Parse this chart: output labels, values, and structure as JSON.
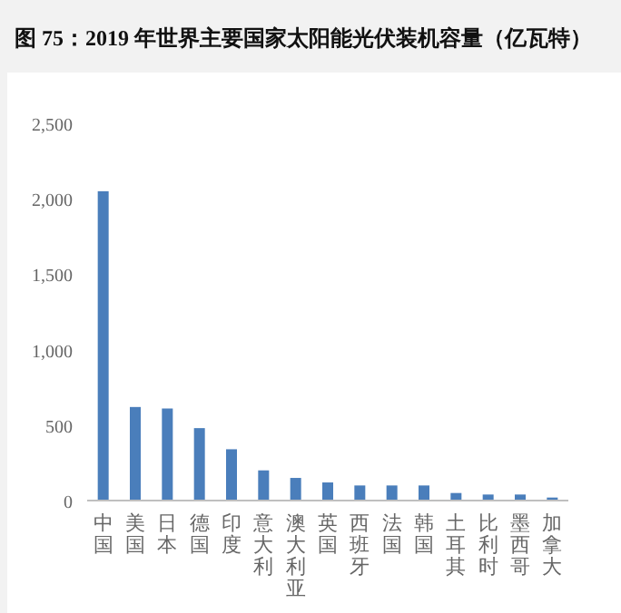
{
  "chart_data": {
    "type": "bar",
    "title": "图 75：2019 年世界主要国家太阳能光伏装机容量（亿瓦特）",
    "categories": [
      "中国",
      "美国",
      "日本",
      "德国",
      "印度",
      "意大利",
      "澳大利亚",
      "英国",
      "西班牙",
      "法国",
      "韩国",
      "土耳其",
      "比利时",
      "墨西哥",
      "加拿大"
    ],
    "values": [
      2050,
      620,
      610,
      480,
      340,
      200,
      150,
      120,
      100,
      100,
      100,
      50,
      40,
      40,
      20
    ],
    "color": "#4a7ebb",
    "ylim": [
      0,
      2500
    ],
    "yticks": [
      {
        "value": 0,
        "label": "0"
      },
      {
        "value": 500,
        "label": "500"
      },
      {
        "value": 1000,
        "label": "1,000"
      },
      {
        "value": 1500,
        "label": "1,500"
      },
      {
        "value": 2000,
        "label": "2,000"
      },
      {
        "value": 2500,
        "label": "2,500"
      }
    ],
    "grid": false
  }
}
